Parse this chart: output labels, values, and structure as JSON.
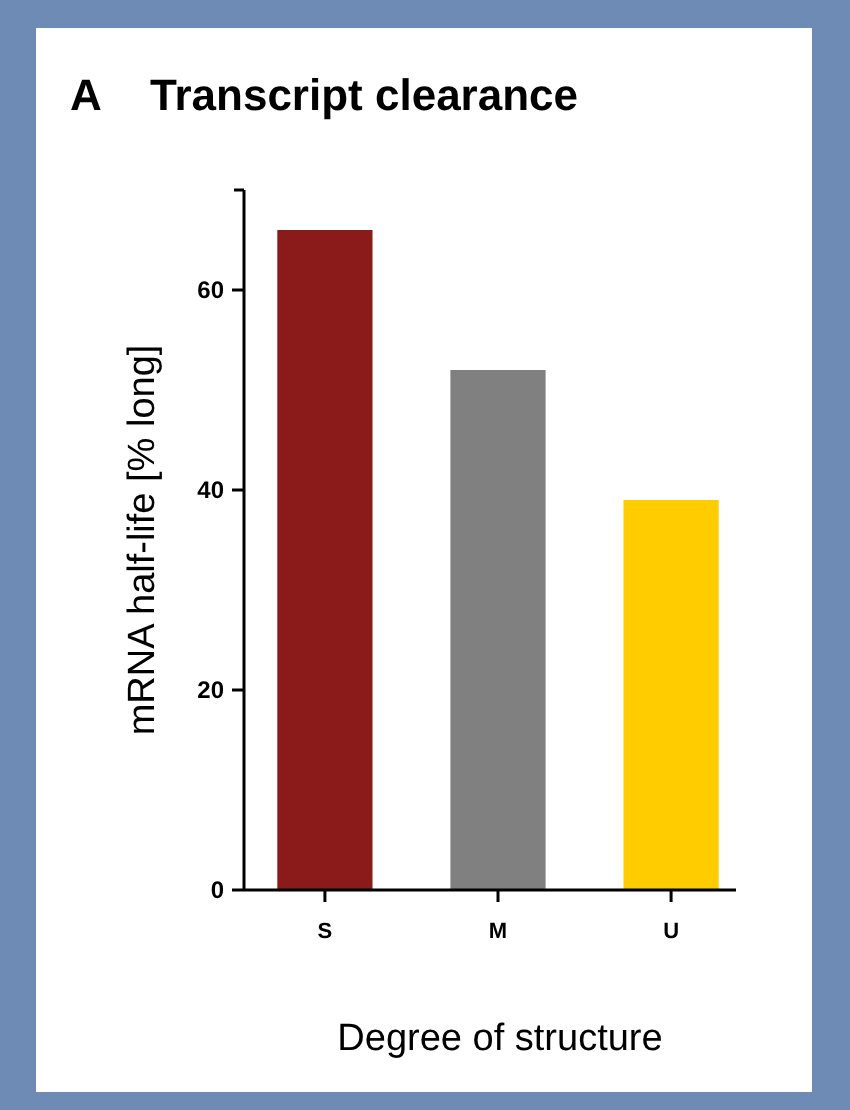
{
  "chart_data": {
    "type": "bar",
    "title": "Transcript clearance",
    "annotations": [
      "A"
    ],
    "ylabel": "mRNA half-life [% long]",
    "xlabel": "Degree of structure",
    "categories": [
      "S",
      "M",
      "U"
    ],
    "values": [
      66,
      52,
      39
    ],
    "colors": [
      "#8b1a1a",
      "#808080",
      "#ffcc00"
    ],
    "ylim": [
      0,
      70
    ],
    "yticks": [
      0,
      20,
      40,
      60
    ],
    "grid": false
  }
}
